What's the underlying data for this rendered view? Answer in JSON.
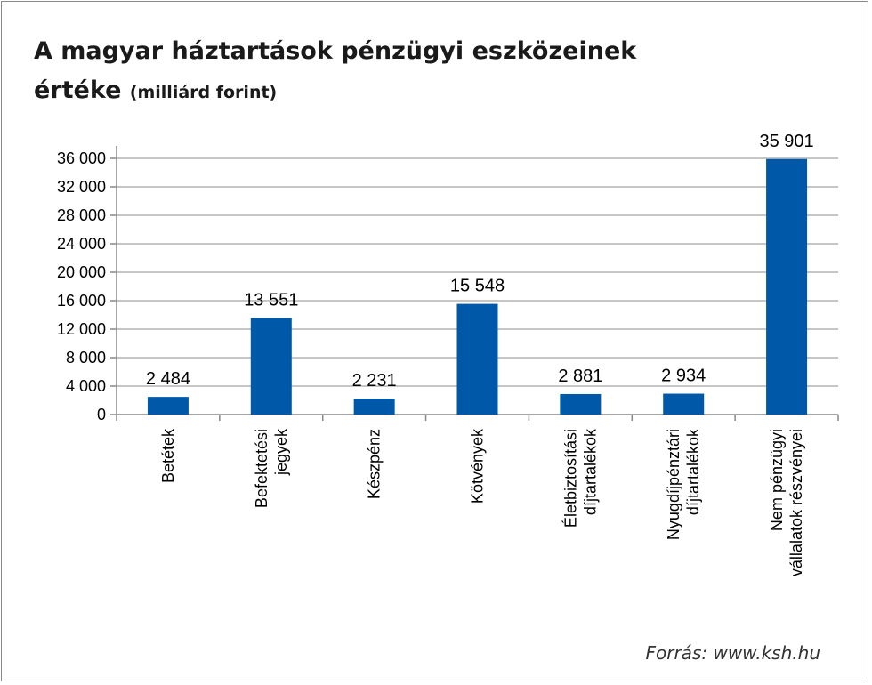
{
  "header": {
    "title_main": "A magyar háztartások pénzügyi eszközeinek értéke",
    "title_unit": "(milliárd forint)"
  },
  "source": "Forrás: www.ksh.hu",
  "colors": {
    "bar": "#0059A8",
    "grid": "#b3b3b3",
    "axis": "#888888"
  },
  "chart_data": {
    "type": "bar",
    "title": "A magyar háztartások pénzügyi eszközeinek értéke (milliárd forint)",
    "xlabel": "",
    "ylabel": "",
    "ylim": [
      0,
      36000
    ],
    "yticks": [
      0,
      4000,
      8000,
      12000,
      16000,
      20000,
      24000,
      28000,
      32000,
      36000
    ],
    "ytick_labels": [
      "0",
      "4 000",
      "8 000",
      "12 000",
      "16 000",
      "20 000",
      "24 000",
      "28 000",
      "32 000",
      "36 000"
    ],
    "grid": true,
    "categories": [
      [
        "Betétek"
      ],
      [
        "Befektetési",
        "jegyek"
      ],
      [
        "Készpénz"
      ],
      [
        "Kötvények"
      ],
      [
        "Életbiztosítási",
        "díjtartalékok"
      ],
      [
        "Nyugdíjpénztári",
        "díjtartalékok"
      ],
      [
        "Nem pénzügyi",
        "vállalatok részvényei"
      ]
    ],
    "values": [
      2484,
      13551,
      2231,
      15548,
      2881,
      2934,
      35901
    ],
    "value_labels": [
      "2 484",
      "13 551",
      "2 231",
      "15 548",
      "2 881",
      "2 934",
      "35 901"
    ]
  }
}
